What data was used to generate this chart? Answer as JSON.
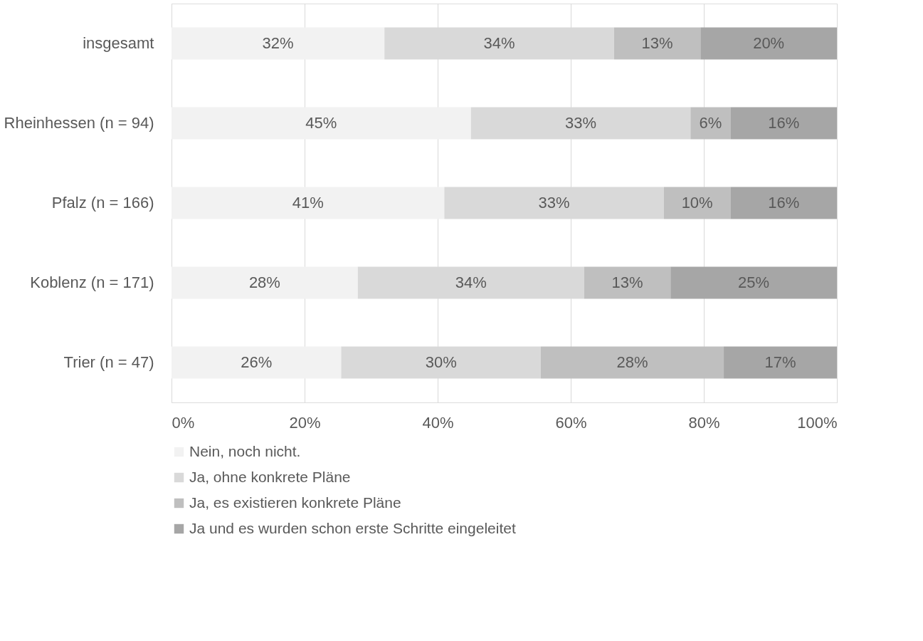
{
  "chart_data": {
    "type": "bar",
    "orientation": "horizontal",
    "stacked": true,
    "categories": [
      "insgesamt",
      "Rheinhessen (n = 94)",
      "Pfalz (n = 166)",
      "Koblenz (n = 171)",
      "Trier (n = 47)"
    ],
    "series": [
      {
        "name": "Nein, noch nicht.",
        "color": "#f2f2f2",
        "values": [
          32,
          45,
          41,
          28,
          25.5
        ],
        "value_labels": [
          "32%",
          "45%",
          "41%",
          "28%",
          "26%"
        ]
      },
      {
        "name": "Ja, ohne konkrete Pläne",
        "color": "#d9d9d9",
        "values": [
          34.5,
          33,
          33,
          34,
          30
        ],
        "value_labels": [
          "34%",
          "33%",
          "33%",
          "34%",
          "30%"
        ]
      },
      {
        "name": "Ja, es existieren konkrete Pläne",
        "color": "#bfbfbf",
        "values": [
          13,
          6,
          10,
          13,
          27.5
        ],
        "value_labels": [
          "13%",
          "6%",
          "10%",
          "13%",
          "28%"
        ]
      },
      {
        "name": "Ja und es wurden schon erste Schritte eingeleitet",
        "color": "#a6a6a6",
        "values": [
          20.5,
          16,
          16,
          25,
          17
        ],
        "value_labels": [
          "20%",
          "16%",
          "16%",
          "25%",
          "17%"
        ]
      }
    ],
    "xlim": [
      0,
      100
    ],
    "xticks": [
      {
        "value": 0,
        "label": "0%"
      },
      {
        "value": 20,
        "label": "20%"
      },
      {
        "value": 40,
        "label": "40%"
      },
      {
        "value": 60,
        "label": "60%"
      },
      {
        "value": 80,
        "label": "80%"
      },
      {
        "value": 100,
        "label": "100%"
      }
    ],
    "grid": "x",
    "legend": "bottom"
  }
}
